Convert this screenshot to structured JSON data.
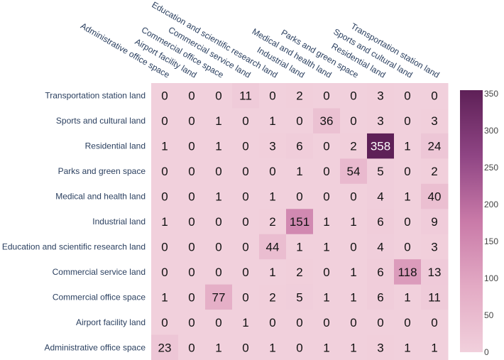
{
  "chart_data": {
    "type": "heatmap",
    "title": "",
    "xlabel": "",
    "ylabel": "",
    "x_labels": [
      "Administrative office space",
      "Airport facility land",
      "Commercial office space",
      "Commercial service land",
      "Education and scientific research land",
      "Industrial land",
      "Medical and health land",
      "Parks and green space",
      "Residential land",
      "Sports and cultural land",
      "Transportation station land"
    ],
    "y_labels": [
      "Transportation station land",
      "Sports and cultural land",
      "Residential land",
      "Parks and green space",
      "Medical and health land",
      "Industrial land",
      "Education and scientific research land",
      "Commercial service land",
      "Commercial office space",
      "Airport facility land",
      "Administrative office space"
    ],
    "values": [
      [
        0,
        0,
        0,
        11,
        0,
        2,
        0,
        0,
        3,
        0,
        0
      ],
      [
        0,
        0,
        1,
        0,
        1,
        0,
        36,
        0,
        3,
        0,
        3
      ],
      [
        1,
        0,
        1,
        0,
        3,
        6,
        0,
        2,
        358,
        1,
        24
      ],
      [
        0,
        0,
        0,
        0,
        0,
        1,
        0,
        54,
        5,
        0,
        2
      ],
      [
        0,
        0,
        1,
        0,
        1,
        0,
        0,
        0,
        4,
        1,
        40
      ],
      [
        1,
        0,
        0,
        0,
        2,
        151,
        1,
        1,
        6,
        0,
        9
      ],
      [
        0,
        0,
        0,
        0,
        44,
        1,
        1,
        0,
        4,
        0,
        3
      ],
      [
        0,
        0,
        0,
        0,
        1,
        2,
        0,
        1,
        6,
        118,
        13
      ],
      [
        1,
        0,
        77,
        0,
        2,
        5,
        1,
        1,
        6,
        1,
        11
      ],
      [
        0,
        0,
        0,
        1,
        0,
        0,
        0,
        0,
        0,
        0,
        0
      ],
      [
        23,
        0,
        1,
        0,
        1,
        0,
        1,
        1,
        3,
        1,
        1
      ]
    ],
    "colorscale": {
      "min": 0,
      "max": 358,
      "low_color": "#f1d0dc",
      "high_color": "#5e2057",
      "ticks": [
        0,
        50,
        100,
        150,
        200,
        250,
        300,
        350
      ]
    },
    "grid": false,
    "legend": "colorbar-right"
  }
}
